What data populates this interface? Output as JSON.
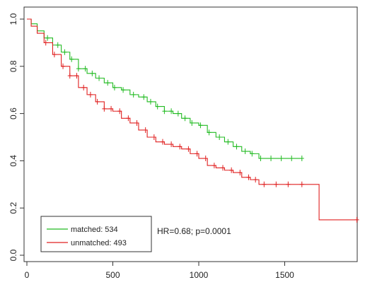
{
  "chart_data": {
    "type": "line",
    "title": "",
    "xlabel": "",
    "ylabel": "",
    "xlim": [
      0,
      2000
    ],
    "ylim": [
      0,
      1.0
    ],
    "x_ticks": [
      0,
      500,
      1000,
      1500
    ],
    "y_ticks": [
      0.0,
      0.2,
      0.4,
      0.6,
      0.8,
      1.0
    ],
    "x_tick_labels": [
      "0",
      "500",
      "1000",
      "1500"
    ],
    "y_tick_labels": [
      "0.0",
      "0.2",
      "0.4",
      "0.6",
      "0.8",
      "1.0"
    ],
    "grid": false,
    "legend_position": "bottom-left",
    "annotation": "HR=0.68; p=0.0001",
    "series": [
      {
        "name": "matched: 534",
        "color": "#22bb22",
        "step": true,
        "x": [
          0,
          25,
          60,
          100,
          150,
          200,
          250,
          300,
          350,
          400,
          450,
          500,
          550,
          600,
          650,
          700,
          750,
          800,
          850,
          900,
          950,
          1000,
          1050,
          1100,
          1150,
          1200,
          1250,
          1300,
          1350,
          1600
        ],
        "y": [
          1.0,
          0.98,
          0.95,
          0.92,
          0.89,
          0.86,
          0.83,
          0.79,
          0.77,
          0.75,
          0.73,
          0.71,
          0.7,
          0.68,
          0.67,
          0.65,
          0.63,
          0.61,
          0.6,
          0.58,
          0.56,
          0.55,
          0.52,
          0.5,
          0.48,
          0.46,
          0.44,
          0.43,
          0.41,
          0.41
        ],
        "censor_x": [
          120,
          180,
          220,
          260,
          300,
          340,
          380,
          420,
          470,
          510,
          560,
          620,
          680,
          720,
          760,
          800,
          840,
          880,
          920,
          960,
          1010,
          1060,
          1120,
          1170,
          1220,
          1270,
          1310,
          1360,
          1420,
          1480,
          1540,
          1600
        ]
      },
      {
        "name": "unmatched: 493",
        "color": "#e02020",
        "step": true,
        "x": [
          0,
          25,
          60,
          100,
          150,
          200,
          250,
          300,
          350,
          400,
          450,
          500,
          550,
          600,
          650,
          700,
          750,
          800,
          850,
          900,
          950,
          1000,
          1050,
          1100,
          1150,
          1200,
          1250,
          1300,
          1350,
          1700,
          1700,
          1920
        ],
        "y": [
          1.0,
          0.97,
          0.94,
          0.9,
          0.85,
          0.8,
          0.76,
          0.71,
          0.68,
          0.65,
          0.62,
          0.61,
          0.58,
          0.56,
          0.53,
          0.5,
          0.48,
          0.47,
          0.46,
          0.45,
          0.43,
          0.41,
          0.38,
          0.37,
          0.36,
          0.35,
          0.33,
          0.32,
          0.3,
          0.3,
          0.15,
          0.15
        ],
        "censor_x": [
          110,
          160,
          210,
          250,
          290,
          330,
          370,
          410,
          450,
          490,
          540,
          590,
          640,
          690,
          740,
          790,
          840,
          890,
          940,
          990,
          1040,
          1090,
          1140,
          1190,
          1240,
          1290,
          1330,
          1380,
          1450,
          1520,
          1600,
          1920
        ]
      }
    ]
  }
}
